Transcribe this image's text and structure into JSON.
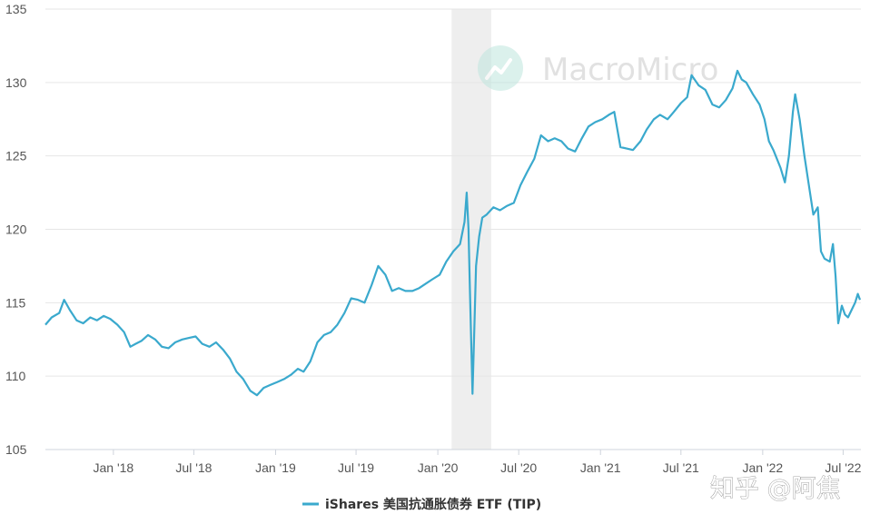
{
  "watermark": {
    "brand": "MacroMicro"
  },
  "credit": "知乎 @阿焦",
  "colors": {
    "line": "#3aa9cd",
    "recession": "#eeeeee",
    "grid": "#e6e6e6"
  },
  "chart_data": {
    "type": "line",
    "x_type": "date",
    "ylim": [
      105,
      135
    ],
    "y_ticks": [
      105,
      110,
      115,
      120,
      125,
      130,
      135
    ],
    "x_ticks": [
      {
        "date": "2018-01-01",
        "label": "Jan '18"
      },
      {
        "date": "2018-07-01",
        "label": "Jul '18"
      },
      {
        "date": "2019-01-01",
        "label": "Jan '19"
      },
      {
        "date": "2019-07-01",
        "label": "Jul '19"
      },
      {
        "date": "2020-01-01",
        "label": "Jan '20"
      },
      {
        "date": "2020-07-01",
        "label": "Jul '20"
      },
      {
        "date": "2021-01-01",
        "label": "Jan '21"
      },
      {
        "date": "2021-07-01",
        "label": "Jul '21"
      },
      {
        "date": "2022-01-01",
        "label": "Jan '22"
      },
      {
        "date": "2022-07-01",
        "label": "Jul '22"
      }
    ],
    "xlim": [
      "2017-08-01",
      "2022-08-10"
    ],
    "shaded_band": {
      "start": "2020-02-01",
      "end": "2020-04-30"
    },
    "grid": "horizontal",
    "legend_position": "bottom-center",
    "series": [
      {
        "name": "iShares 美国抗通胀债券 ETF (TIP)",
        "points": [
          [
            "2017-08-01",
            113.5
          ],
          [
            "2017-08-15",
            114.0
          ],
          [
            "2017-09-01",
            114.3
          ],
          [
            "2017-09-12",
            115.2
          ],
          [
            "2017-09-25",
            114.5
          ],
          [
            "2017-10-10",
            113.8
          ],
          [
            "2017-10-25",
            113.6
          ],
          [
            "2017-11-10",
            114.0
          ],
          [
            "2017-11-25",
            113.8
          ],
          [
            "2017-12-10",
            114.1
          ],
          [
            "2017-12-25",
            113.9
          ],
          [
            "2018-01-10",
            113.5
          ],
          [
            "2018-01-25",
            113.0
          ],
          [
            "2018-02-08",
            112.0
          ],
          [
            "2018-02-20",
            112.2
          ],
          [
            "2018-03-05",
            112.4
          ],
          [
            "2018-03-20",
            112.8
          ],
          [
            "2018-04-05",
            112.5
          ],
          [
            "2018-04-20",
            112.0
          ],
          [
            "2018-05-05",
            111.9
          ],
          [
            "2018-05-20",
            112.3
          ],
          [
            "2018-06-05",
            112.5
          ],
          [
            "2018-06-20",
            112.6
          ],
          [
            "2018-07-05",
            112.7
          ],
          [
            "2018-07-20",
            112.2
          ],
          [
            "2018-08-05",
            112.0
          ],
          [
            "2018-08-20",
            112.3
          ],
          [
            "2018-09-05",
            111.8
          ],
          [
            "2018-09-20",
            111.2
          ],
          [
            "2018-10-05",
            110.3
          ],
          [
            "2018-10-20",
            109.8
          ],
          [
            "2018-11-05",
            109.0
          ],
          [
            "2018-11-20",
            108.7
          ],
          [
            "2018-12-05",
            109.2
          ],
          [
            "2018-12-20",
            109.4
          ],
          [
            "2019-01-05",
            109.6
          ],
          [
            "2019-01-20",
            109.8
          ],
          [
            "2019-02-05",
            110.1
          ],
          [
            "2019-02-20",
            110.5
          ],
          [
            "2019-03-05",
            110.3
          ],
          [
            "2019-03-20",
            111.0
          ],
          [
            "2019-04-05",
            112.3
          ],
          [
            "2019-04-20",
            112.8
          ],
          [
            "2019-05-05",
            113.0
          ],
          [
            "2019-05-20",
            113.5
          ],
          [
            "2019-06-05",
            114.3
          ],
          [
            "2019-06-20",
            115.3
          ],
          [
            "2019-07-05",
            115.2
          ],
          [
            "2019-07-20",
            115.0
          ],
          [
            "2019-08-05",
            116.2
          ],
          [
            "2019-08-20",
            117.5
          ],
          [
            "2019-09-05",
            116.9
          ],
          [
            "2019-09-20",
            115.8
          ],
          [
            "2019-10-05",
            116.0
          ],
          [
            "2019-10-20",
            115.8
          ],
          [
            "2019-11-05",
            115.8
          ],
          [
            "2019-11-20",
            116.0
          ],
          [
            "2019-12-05",
            116.3
          ],
          [
            "2019-12-20",
            116.6
          ],
          [
            "2020-01-05",
            116.9
          ],
          [
            "2020-01-20",
            117.8
          ],
          [
            "2020-02-05",
            118.5
          ],
          [
            "2020-02-20",
            119.0
          ],
          [
            "2020-03-01",
            120.5
          ],
          [
            "2020-03-06",
            122.5
          ],
          [
            "2020-03-10",
            120.0
          ],
          [
            "2020-03-13",
            116.0
          ],
          [
            "2020-03-16",
            112.5
          ],
          [
            "2020-03-19",
            108.8
          ],
          [
            "2020-03-23",
            113.0
          ],
          [
            "2020-03-27",
            117.5
          ],
          [
            "2020-04-03",
            119.5
          ],
          [
            "2020-04-10",
            120.8
          ],
          [
            "2020-04-20",
            121.0
          ],
          [
            "2020-05-05",
            121.5
          ],
          [
            "2020-05-20",
            121.3
          ],
          [
            "2020-06-05",
            121.6
          ],
          [
            "2020-06-20",
            121.8
          ],
          [
            "2020-07-05",
            123.0
          ],
          [
            "2020-07-20",
            123.9
          ],
          [
            "2020-08-05",
            124.8
          ],
          [
            "2020-08-20",
            126.4
          ],
          [
            "2020-09-05",
            126.0
          ],
          [
            "2020-09-20",
            126.2
          ],
          [
            "2020-10-05",
            126.0
          ],
          [
            "2020-10-20",
            125.5
          ],
          [
            "2020-11-05",
            125.3
          ],
          [
            "2020-11-20",
            126.2
          ],
          [
            "2020-12-05",
            127.0
          ],
          [
            "2020-12-20",
            127.3
          ],
          [
            "2021-01-05",
            127.5
          ],
          [
            "2021-01-20",
            127.8
          ],
          [
            "2021-02-01",
            128.0
          ],
          [
            "2021-02-15",
            125.6
          ],
          [
            "2021-03-01",
            125.5
          ],
          [
            "2021-03-15",
            125.4
          ],
          [
            "2021-04-01",
            126.0
          ],
          [
            "2021-04-15",
            126.8
          ],
          [
            "2021-05-01",
            127.5
          ],
          [
            "2021-05-15",
            127.8
          ],
          [
            "2021-06-01",
            127.5
          ],
          [
            "2021-06-15",
            128.0
          ],
          [
            "2021-07-01",
            128.6
          ],
          [
            "2021-07-15",
            129.0
          ],
          [
            "2021-07-25",
            130.5
          ],
          [
            "2021-08-10",
            129.8
          ],
          [
            "2021-08-25",
            129.5
          ],
          [
            "2021-09-10",
            128.5
          ],
          [
            "2021-09-25",
            128.3
          ],
          [
            "2021-10-10",
            128.8
          ],
          [
            "2021-10-25",
            129.6
          ],
          [
            "2021-11-05",
            130.8
          ],
          [
            "2021-11-15",
            130.2
          ],
          [
            "2021-11-25",
            130.0
          ],
          [
            "2021-12-10",
            129.2
          ],
          [
            "2021-12-25",
            128.5
          ],
          [
            "2022-01-05",
            127.5
          ],
          [
            "2022-01-15",
            126.0
          ],
          [
            "2022-01-25",
            125.4
          ],
          [
            "2022-02-10",
            124.2
          ],
          [
            "2022-02-20",
            123.2
          ],
          [
            "2022-03-01",
            125.0
          ],
          [
            "2022-03-10",
            128.0
          ],
          [
            "2022-03-15",
            129.2
          ],
          [
            "2022-03-25",
            127.5
          ],
          [
            "2022-04-05",
            125.0
          ],
          [
            "2022-04-15",
            123.0
          ],
          [
            "2022-04-25",
            121.0
          ],
          [
            "2022-05-05",
            121.5
          ],
          [
            "2022-05-12",
            118.5
          ],
          [
            "2022-05-20",
            118.0
          ],
          [
            "2022-06-01",
            117.8
          ],
          [
            "2022-06-08",
            119.0
          ],
          [
            "2022-06-14",
            116.8
          ],
          [
            "2022-06-20",
            113.6
          ],
          [
            "2022-06-28",
            114.8
          ],
          [
            "2022-07-05",
            114.2
          ],
          [
            "2022-07-12",
            114.0
          ],
          [
            "2022-07-20",
            114.5
          ],
          [
            "2022-07-28",
            115.0
          ],
          [
            "2022-08-03",
            115.6
          ],
          [
            "2022-08-08",
            115.2
          ]
        ]
      }
    ]
  }
}
